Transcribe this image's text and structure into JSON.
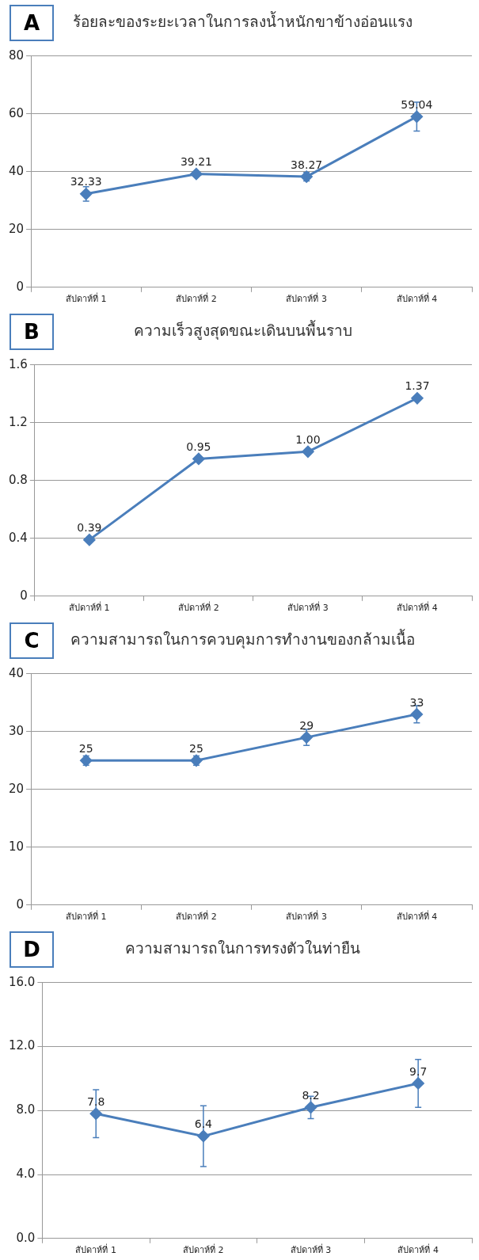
{
  "chart_data": [
    {
      "type": "line",
      "title": "ร้อยละของระยะเวลาในการลงน้ำหนักขาข้างอ่อนแรง",
      "annotations": [
        "A"
      ],
      "categories": [
        "สัปดาห์ที่ 1",
        "สัปดาห์ที่ 2",
        "สัปดาห์ที่ 3",
        "สัปดาห์ที่ 4"
      ],
      "values": [
        32.33,
        39.21,
        38.27,
        59.04
      ],
      "errors": [
        2.5,
        null,
        1.5,
        5
      ],
      "color": "#4a7ebb",
      "ylim": [
        0,
        80
      ],
      "yticks": [
        0,
        20,
        40,
        60,
        80
      ],
      "grid": "y",
      "marker": "diamond",
      "legend": false,
      "data_labels": true
    },
    {
      "type": "line",
      "title": "ความเร็วสูงสุดขณะเดินบนพื้นราบ",
      "annotations": [
        "B"
      ],
      "categories": [
        "สัปดาห์ที่ 1",
        "สัปดาห์ที่ 2",
        "สัปดาห์ที่ 3",
        "สัปดาห์ที่ 4"
      ],
      "values": [
        0.39,
        0.95,
        1.0,
        1.37
      ],
      "value_labels": [
        "0.39",
        "0.95",
        "1.00",
        "1.37"
      ],
      "color": "#4a7ebb",
      "ylim": [
        0,
        1.6
      ],
      "yticks": [
        0,
        0.4,
        0.8,
        1.2,
        1.6
      ],
      "grid": "y",
      "marker": "diamond",
      "legend": false
    },
    {
      "type": "line",
      "title": "ความสามารถในการควบคุมการทำงานของกล้ามเนื้อ",
      "annotations": [
        "C"
      ],
      "categories": [
        "สัปดาห์ที่ 1",
        "สัปดาห์ที่ 2",
        "สัปดาห์ที่ 3",
        "สัปดาห์ที่ 4"
      ],
      "values": [
        25,
        25,
        29,
        33
      ],
      "errors": [
        0.8,
        0.8,
        1.4,
        1.5
      ],
      "color": "#4a7ebb",
      "ylim": [
        0,
        40
      ],
      "yticks": [
        0,
        10,
        20,
        30,
        40
      ],
      "grid": "y",
      "marker": "diamond",
      "legend": false,
      "data_labels": true
    },
    {
      "type": "line",
      "title": "ความสามารถในการทรงตัวในท่ายืน",
      "annotations": [
        "D"
      ],
      "categories": [
        "สัปดาห์ที่ 1",
        "สัปดาห์ที่ 2",
        "สัปดาห์ที่ 3",
        "สัปดาห์ที่ 4"
      ],
      "values": [
        7.8,
        6.4,
        8.2,
        9.7
      ],
      "errors": [
        1.5,
        1.9,
        0.7,
        1.5
      ],
      "color": "#4a7ebb",
      "ylim": [
        0,
        16
      ],
      "yticks": [
        {
          "value": 0,
          "label": "0.0"
        },
        {
          "value": 4,
          "label": "4.0"
        },
        {
          "value": 8,
          "label": "8.0"
        },
        {
          "value": 12,
          "label": "12.0"
        },
        {
          "value": 16,
          "label": "16.0"
        }
      ],
      "grid": "y",
      "marker": "diamond",
      "legend": false,
      "data_labels": true
    }
  ]
}
